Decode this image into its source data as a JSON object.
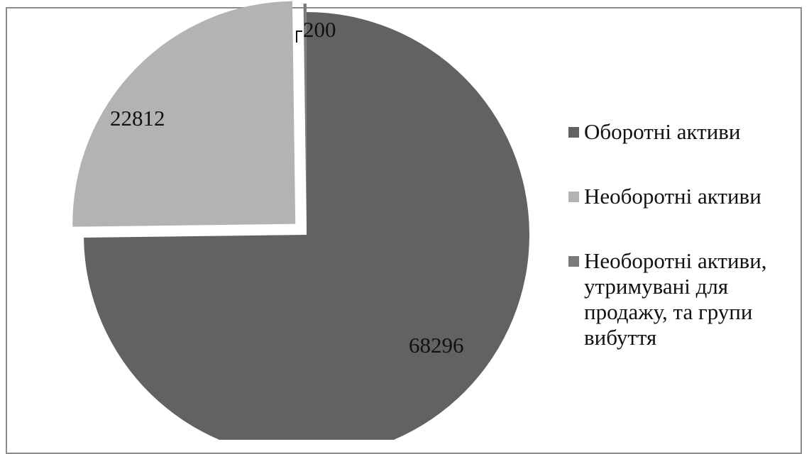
{
  "chart_data": {
    "type": "pie",
    "title": "",
    "categories": [
      "Оборотні активи",
      "Необоротні активи",
      "Необоротні активи, утримувані для продажу, та групи вибуття"
    ],
    "values": [
      68296,
      22812,
      200
    ],
    "data_labels": [
      "68296",
      "22812",
      "200"
    ],
    "colors": [
      "#626262",
      "#b3b3b3",
      "#7a7a7a"
    ],
    "legend": "right",
    "exploded": true
  },
  "legend": {
    "items": [
      {
        "label": "Оборотні активи",
        "color": "#626262"
      },
      {
        "label": "Необоротні активи",
        "color": "#b3b3b3"
      },
      {
        "label": "Необоротні активи, утримувані для продажу, та групи вибуття",
        "color": "#7a7a7a"
      }
    ]
  }
}
